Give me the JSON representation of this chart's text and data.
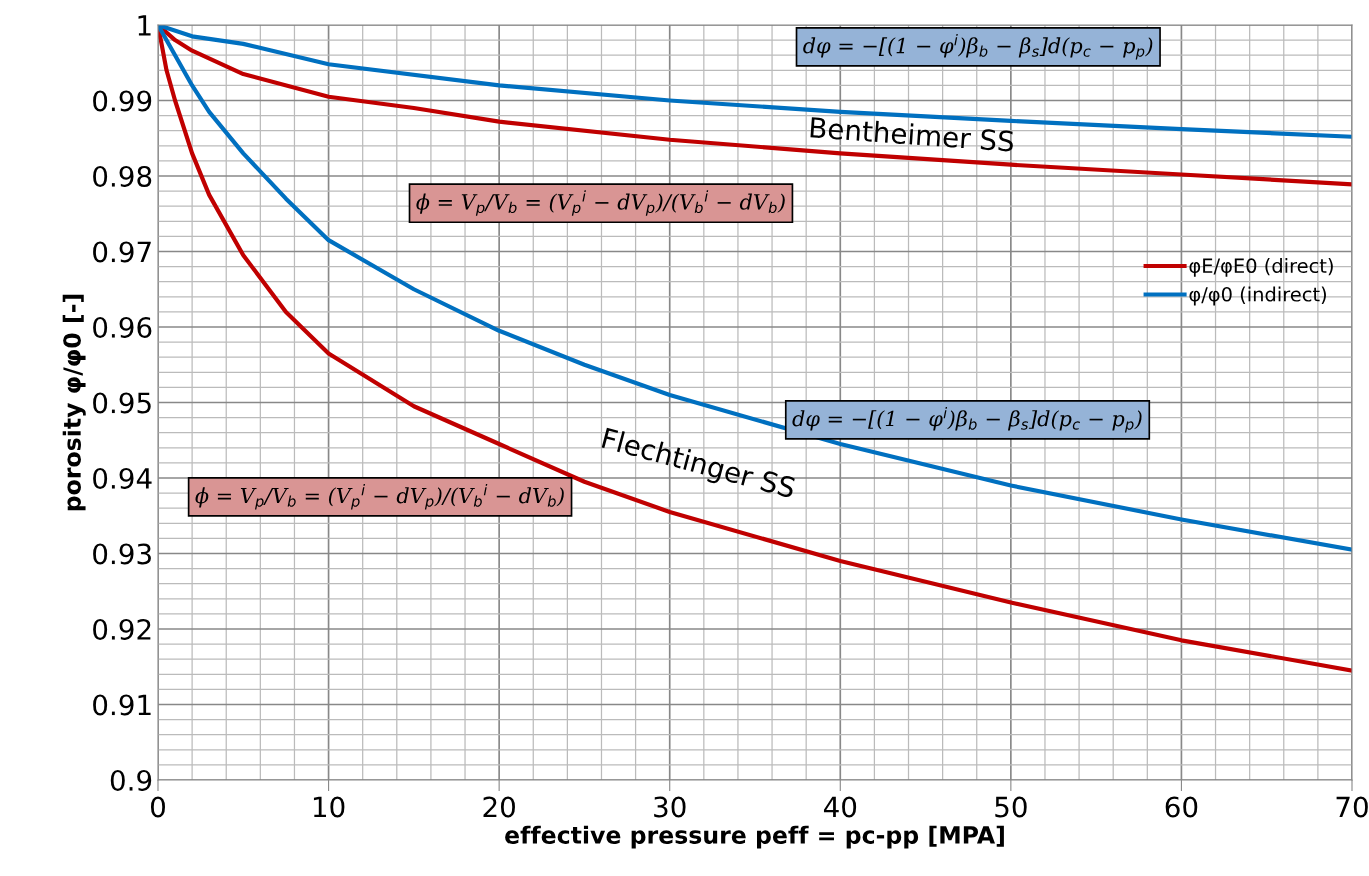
{
  "chart_data": {
    "type": "line",
    "xlabel": "effective pressure peff = pc-pp [MPA]",
    "ylabel": "porosity φ/φ0 [-]",
    "xlim": [
      0,
      70
    ],
    "ylim": [
      0.9,
      1
    ],
    "xticks": [
      0,
      10,
      20,
      30,
      40,
      50,
      60,
      70
    ],
    "yticks": [
      0.9,
      0.91,
      0.92,
      0.93,
      0.94,
      0.95,
      0.96,
      0.97,
      0.98,
      0.99,
      1
    ],
    "grid": true,
    "legend": "right",
    "marker": "none",
    "line_style": "solid",
    "series": [
      {
        "name": "φE/φE0 (direct)",
        "color": "#c00000",
        "x": [
          0,
          1,
          2,
          5,
          10,
          15,
          20,
          30,
          40,
          50,
          60,
          70
        ],
        "values": [
          1,
          0.998,
          0.9966,
          0.9935,
          0.9905,
          0.989,
          0.9872,
          0.9848,
          0.983,
          0.9815,
          0.9802,
          0.9789
        ]
      },
      {
        "name": "φ/φ0 (indirect)",
        "color": "#0070c0",
        "x": [
          0,
          2,
          5,
          10,
          20,
          30,
          40,
          50,
          60,
          70
        ],
        "values": [
          1,
          0.9985,
          0.9975,
          0.9948,
          0.992,
          0.99,
          0.9885,
          0.9873,
          0.9862,
          0.9852
        ]
      },
      {
        "color": "#c00000",
        "x": [
          0,
          0.5,
          1,
          2,
          3,
          5,
          7.5,
          10,
          15,
          20,
          25,
          30,
          40,
          50,
          60,
          70
        ],
        "values": [
          1,
          0.994,
          0.99,
          0.983,
          0.9775,
          0.9695,
          0.962,
          0.9565,
          0.9495,
          0.9445,
          0.9395,
          0.9355,
          0.929,
          0.9235,
          0.9185,
          0.9145
        ]
      },
      {
        "color": "#0070c0",
        "x": [
          0,
          1,
          2,
          3,
          5,
          7.5,
          10,
          15,
          20,
          25,
          30,
          40,
          50,
          60,
          70
        ],
        "values": [
          1,
          0.996,
          0.992,
          0.9885,
          0.983,
          0.977,
          0.9715,
          0.965,
          0.9595,
          0.955,
          0.951,
          0.9445,
          0.939,
          0.9345,
          0.9305
        ]
      }
    ],
    "annotations": [
      "dφ = −[(1 − φ$^{i}$)β$_{b}$ − β$_{s}$]d(p$_{c}$ − p$_{p}$)",
      "Bentheimer SS",
      "ϕ = V$_{p}$/V$_{b}$ = (V$_{p}$$^{i}$ − dV$_{p}$)/(V$_{b}$$^{i}$ − dV$_{b}$)",
      "dφ = −[(1 − φ$^{i}$)β$_{b}$ − β$_{s}$]d(p$_{c}$ − p$_{p}$)",
      "Flechtinger SS",
      "ϕ = V$_{p}$/V$_{b}$ = (V$_{p}$$^{i}$ − dV$_{p}$)/(V$_{b}$$^{i}$ − dV$_{b}$)"
    ]
  }
}
